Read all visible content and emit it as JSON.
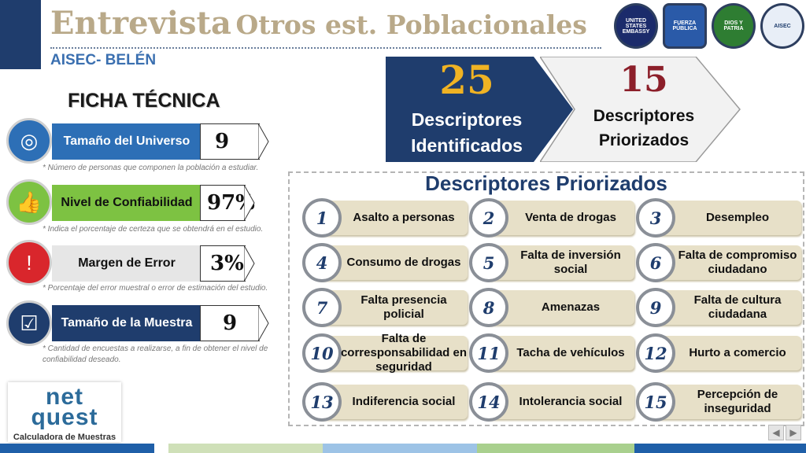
{
  "header": {
    "title_main": "Entrevista",
    "title_rest": "Otros est. Poblacionales",
    "subtitle": "AISEC- BELÉN",
    "logos": [
      {
        "icon": "us-embassy-seal-icon",
        "text": "UNITED STATES EMBASSY"
      },
      {
        "icon": "fuerza-publica-shield-icon",
        "text": "FUERZA PÚBLICA"
      },
      {
        "icon": "police-emblem-icon",
        "text": "DIOS Y PATRIA"
      },
      {
        "icon": "aisec-emblem-icon",
        "text": "AISEC"
      }
    ]
  },
  "ficha": {
    "title": "FICHA TÉCNICA",
    "rows": [
      {
        "icon": "universe-target-icon",
        "label": "Tamaño del Universo",
        "value": "9",
        "note": "* Número de personas que componen la población a estudiar.",
        "color": "#2d6fb6"
      },
      {
        "icon": "thumbs-up-icon",
        "label": "Nivel de Confiabilidad",
        "value": "97%",
        "note": "* Indica el porcentaje de certeza que se obtendrá en el estudio.",
        "color": "#7dc242"
      },
      {
        "icon": "error-exclamation-icon",
        "label": "Margen de Error",
        "value": "3%",
        "note": "* Porcentaje del error muestral o error de estimación del estudio.",
        "color": "#d9d9d9"
      },
      {
        "icon": "clipboard-check-icon",
        "label": "Tamaño de la Muestra",
        "value": "9",
        "note": "* Cantidad de encuestas a realizarse, a fin de obtener el nivel de confiabilidad deseado.",
        "color": "#1f3d6d"
      }
    ]
  },
  "netquest": {
    "logo_line1": "net",
    "logo_line2": "quest",
    "caption": "Calculadora de Muestras"
  },
  "summary": {
    "identified_count": "25",
    "identified_label_1": "Descriptores",
    "identified_label_2": "Identificados",
    "prioritized_count": "15",
    "prioritized_label_1": "Descriptores",
    "prioritized_label_2": "Priorizados"
  },
  "priorizados": {
    "title": "Descriptores Priorizados",
    "items": [
      {
        "n": "1",
        "label": "Asalto a personas"
      },
      {
        "n": "2",
        "label": "Venta de drogas"
      },
      {
        "n": "3",
        "label": "Desempleo"
      },
      {
        "n": "4",
        "label": "Consumo de drogas"
      },
      {
        "n": "5",
        "label": "Falta de inversión social"
      },
      {
        "n": "6",
        "label": "Falta de compromiso ciudadano"
      },
      {
        "n": "7",
        "label": "Falta presencia policial"
      },
      {
        "n": "8",
        "label": "Amenazas"
      },
      {
        "n": "9",
        "label": "Falta de cultura ciudadana"
      },
      {
        "n": "10",
        "label": "Falta de corresponsabilidad en seguridad"
      },
      {
        "n": "11",
        "label": "Tacha de vehículos"
      },
      {
        "n": "12",
        "label": "Hurto a comercio"
      },
      {
        "n": "13",
        "label": "Indiferencia social"
      },
      {
        "n": "14",
        "label": "Intolerancia social"
      },
      {
        "n": "15",
        "label": "Percepción de inseguridad"
      }
    ]
  },
  "nav": {
    "prev_icon": "previous-slide-icon",
    "next_icon": "next-slide-icon"
  },
  "colors": {
    "navy": "#1f3d6d",
    "gold": "#f0b323",
    "maroon": "#8c1f2a",
    "pill": "#e7e0c8"
  }
}
